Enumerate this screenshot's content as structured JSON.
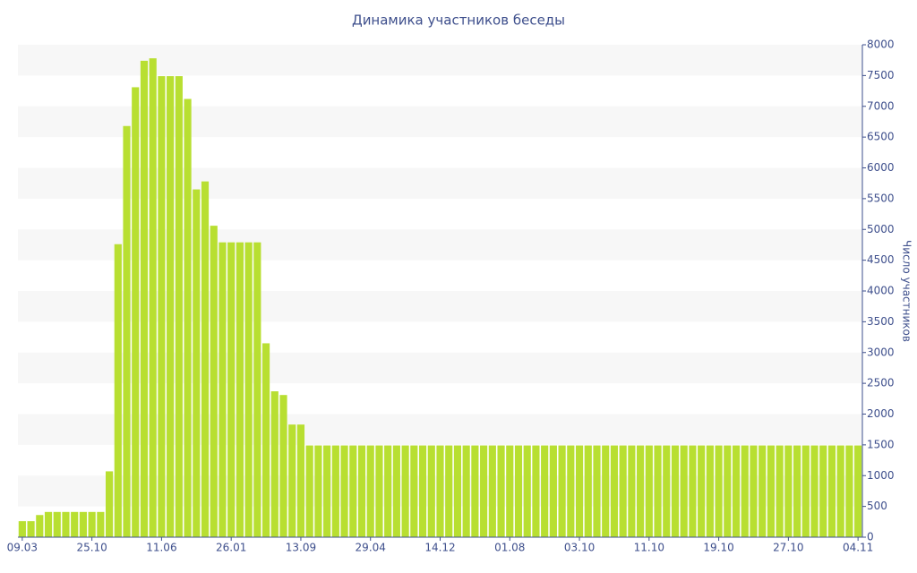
{
  "chart_data": {
    "type": "bar",
    "title": "Динамика участников беседы",
    "y_axis_label": "Число участников",
    "categories": [
      "09.03",
      null,
      null,
      null,
      null,
      null,
      null,
      null,
      "25.10",
      null,
      null,
      null,
      null,
      null,
      null,
      null,
      "11.06",
      null,
      null,
      null,
      null,
      null,
      null,
      null,
      "26.01",
      null,
      null,
      null,
      null,
      null,
      null,
      null,
      "13.09",
      null,
      null,
      null,
      null,
      null,
      null,
      null,
      "29.04",
      null,
      null,
      null,
      null,
      null,
      null,
      null,
      "14.12",
      null,
      null,
      null,
      null,
      null,
      null,
      null,
      "01.08",
      null,
      null,
      null,
      null,
      null,
      null,
      null,
      "03.10",
      null,
      null,
      null,
      null,
      null,
      null,
      null,
      "11.10",
      null,
      null,
      null,
      null,
      null,
      null,
      null,
      "19.10",
      null,
      null,
      null,
      null,
      null,
      null,
      null,
      "27.10",
      null,
      null,
      null,
      null,
      null,
      null,
      null,
      "04.11"
    ],
    "values": [
      260,
      260,
      360,
      410,
      410,
      410,
      410,
      410,
      410,
      410,
      1070,
      4760,
      6680,
      7310,
      7740,
      7780,
      7490,
      7490,
      7490,
      7120,
      5650,
      5780,
      5060,
      4790,
      4790,
      4790,
      4790,
      4790,
      3150,
      2370,
      2310,
      1830,
      1830,
      1490,
      1490,
      1490,
      1490,
      1490,
      1490,
      1490,
      1490,
      1490,
      1490,
      1490,
      1490,
      1490,
      1490,
      1490,
      1490,
      1490,
      1490,
      1490,
      1490,
      1490,
      1490,
      1490,
      1490,
      1490,
      1490,
      1490,
      1490,
      1490,
      1490,
      1490,
      1490,
      1490,
      1490,
      1490,
      1490,
      1490,
      1490,
      1490,
      1490,
      1490,
      1490,
      1490,
      1490,
      1490,
      1490,
      1490,
      1490,
      1490,
      1490,
      1490,
      1490,
      1490,
      1490,
      1490,
      1490,
      1490,
      1490,
      1490,
      1490,
      1490,
      1490,
      1490,
      1490
    ],
    "color": "#b8df31",
    "ylim": [
      0,
      8000
    ],
    "yticks": [
      0,
      500,
      1000,
      1500,
      2000,
      2500,
      3000,
      3500,
      4000,
      4500,
      5000,
      5500,
      6000,
      6500,
      7000,
      7500,
      8000
    ],
    "grid": true,
    "y_axis_side": "right"
  }
}
